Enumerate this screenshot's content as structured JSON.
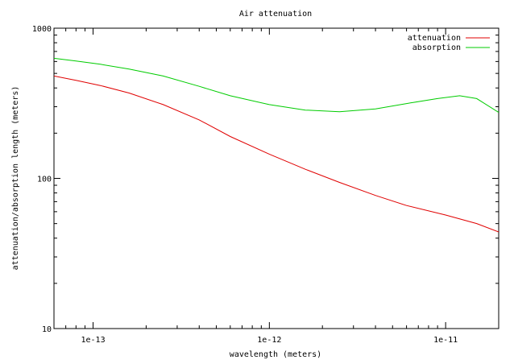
{
  "chart_data": {
    "type": "line",
    "title": "Air attenuation",
    "xlabel": "wavelength (meters)",
    "ylabel": "attenuation/absorption length (meters)",
    "x_scale": "log",
    "y_scale": "log",
    "xlim": [
      6e-14,
      2e-11
    ],
    "ylim": [
      10,
      1000
    ],
    "x_ticks": [
      {
        "value": 1e-13,
        "label": "1e-13"
      },
      {
        "value": 1e-12,
        "label": "1e-12"
      },
      {
        "value": 1e-11,
        "label": "1e-11"
      }
    ],
    "y_ticks": [
      {
        "value": 10,
        "label": "10"
      },
      {
        "value": 100,
        "label": "100"
      },
      {
        "value": 1000,
        "label": "1000"
      }
    ],
    "grid": false,
    "legend_position": "top-right",
    "series": [
      {
        "name": "attenuation",
        "color": "#e00000",
        "x": [
          6e-14,
          8e-14,
          1.1e-13,
          1.6e-13,
          2.5e-13,
          4e-13,
          6e-13,
          1e-12,
          1.6e-12,
          2.5e-12,
          4e-12,
          6e-12,
          1e-11,
          1.5e-11,
          2e-11
        ],
        "y": [
          480,
          450,
          415,
          370,
          310,
          245,
          190,
          145,
          115,
          94,
          77,
          66,
          57,
          50,
          44
        ]
      },
      {
        "name": "absorption",
        "color": "#00cc00",
        "x": [
          6e-14,
          8e-14,
          1.1e-13,
          1.6e-13,
          2.5e-13,
          4e-13,
          6e-13,
          1e-12,
          1.6e-12,
          2.5e-12,
          4e-12,
          6e-12,
          9e-12,
          1.2e-11,
          1.5e-11,
          2e-11
        ],
        "y": [
          630,
          605,
          575,
          535,
          480,
          410,
          355,
          310,
          285,
          278,
          290,
          315,
          340,
          355,
          340,
          275
        ]
      }
    ]
  }
}
